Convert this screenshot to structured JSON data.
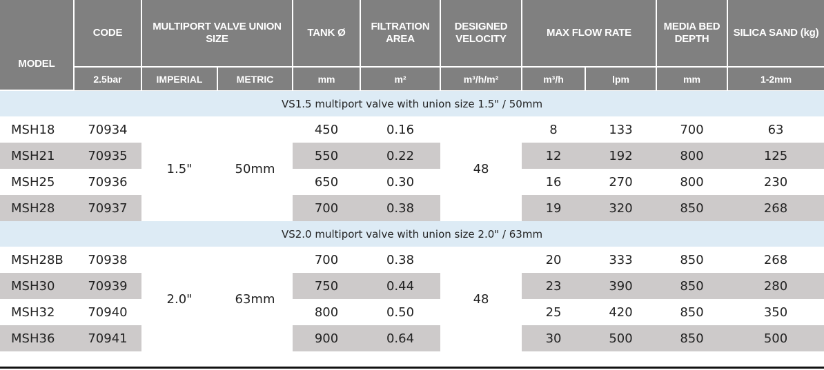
{
  "header": {
    "model": "MODEL",
    "code": "CODE",
    "multiport": "MULTIPORT VALVE UNION SIZE",
    "tank": "TANK Ø",
    "filtration": "FILTRATION AREA",
    "velocity": "DESIGNED VELOCITY",
    "maxflow": "MAX FLOW RATE",
    "media": "MEDIA BED DEPTH",
    "silica": "SILICA SAND (kg)"
  },
  "units": {
    "code": "2.5bar",
    "imperial": "IMPERIAL",
    "metric": "METRIC",
    "tank": "mm",
    "filtration": "m²",
    "velocity": "m³/h/m²",
    "flow_m3h": "m³/h",
    "flow_lpm": "lpm",
    "media": "mm",
    "silica": "1-2mm"
  },
  "sections": [
    {
      "title": "VS1.5 multiport valve with union size 1.5\" / 50mm",
      "imperial": "1.5\"",
      "metric": "50mm",
      "velocity": "48",
      "rows": [
        {
          "model": "MSH18",
          "code": "70934",
          "tank": "450",
          "area": "0.16",
          "m3h": "8",
          "lpm": "133",
          "depth": "700",
          "sand": "63"
        },
        {
          "model": "MSH21",
          "code": "70935",
          "tank": "550",
          "area": "0.22",
          "m3h": "12",
          "lpm": "192",
          "depth": "800",
          "sand": "125"
        },
        {
          "model": "MSH25",
          "code": "70936",
          "tank": "650",
          "area": "0.30",
          "m3h": "16",
          "lpm": "270",
          "depth": "800",
          "sand": "230"
        },
        {
          "model": "MSH28",
          "code": "70937",
          "tank": "700",
          "area": "0.38",
          "m3h": "19",
          "lpm": "320",
          "depth": "850",
          "sand": "268"
        }
      ]
    },
    {
      "title": "VS2.0 multiport valve with union size 2.0\" / 63mm",
      "imperial": "2.0\"",
      "metric": "63mm",
      "velocity": "48",
      "rows": [
        {
          "model": "MSH28B",
          "code": "70938",
          "tank": "700",
          "area": "0.38",
          "m3h": "20",
          "lpm": "333",
          "depth": "850",
          "sand": "268"
        },
        {
          "model": "MSH30",
          "code": "70939",
          "tank": "750",
          "area": "0.44",
          "m3h": "23",
          "lpm": "390",
          "depth": "850",
          "sand": "280"
        },
        {
          "model": "MSH32",
          "code": "70940",
          "tank": "800",
          "area": "0.50",
          "m3h": "25",
          "lpm": "420",
          "depth": "850",
          "sand": "350"
        },
        {
          "model": "MSH36",
          "code": "70941",
          "tank": "900",
          "area": "0.64",
          "m3h": "30",
          "lpm": "500",
          "depth": "850",
          "sand": "500"
        }
      ]
    }
  ]
}
